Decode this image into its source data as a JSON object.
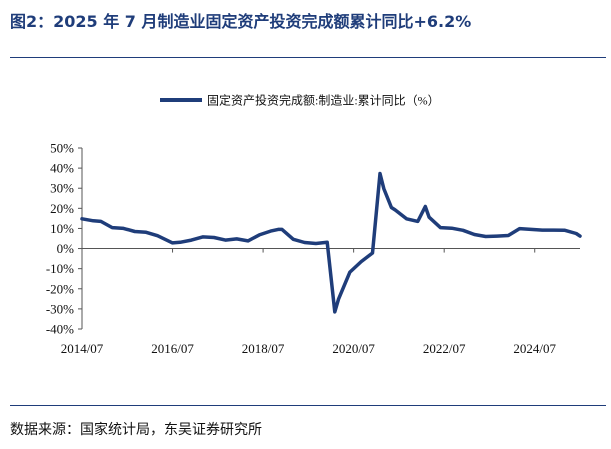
{
  "figure": {
    "title": "图2：2025 年 7 月制造业固定资产投资完成额累计同比+6.2%",
    "source": "数据来源：国家统计局，东吴证券研究所"
  },
  "chart_data": {
    "type": "line",
    "title": "",
    "xlabel": "",
    "ylabel": "",
    "legend": {
      "position": "top",
      "entries": [
        "固定资产投资完成额:制造业:累计同比（%）"
      ]
    },
    "grid": false,
    "ylim": [
      -40,
      50
    ],
    "yticks": [
      -40,
      -30,
      -20,
      -10,
      0,
      10,
      20,
      30,
      40,
      50
    ],
    "ytick_labels": [
      "-40%",
      "-30%",
      "-20%",
      "-10%",
      "0%",
      "10%",
      "20%",
      "30%",
      "40%",
      "50%"
    ],
    "xlim": [
      "2014/07",
      "2025/07"
    ],
    "xticks": [
      "2014/07",
      "2016/07",
      "2018/07",
      "2020/07",
      "2022/07",
      "2024/07"
    ],
    "series_color": "#1f3d7a",
    "series": [
      {
        "name": "固定资产投资完成额:制造业:累计同比（%）",
        "points": [
          [
            "2014/07",
            14.8
          ],
          [
            "2014/10",
            13.8
          ],
          [
            "2014/12",
            13.5
          ],
          [
            "2015/03",
            10.4
          ],
          [
            "2015/06",
            10.0
          ],
          [
            "2015/09",
            8.5
          ],
          [
            "2015/12",
            8.1
          ],
          [
            "2016/03",
            6.4
          ],
          [
            "2016/05",
            4.6
          ],
          [
            "2016/07",
            2.8
          ],
          [
            "2016/09",
            3.1
          ],
          [
            "2016/12",
            4.2
          ],
          [
            "2017/03",
            5.8
          ],
          [
            "2017/06",
            5.5
          ],
          [
            "2017/09",
            4.2
          ],
          [
            "2017/12",
            4.8
          ],
          [
            "2018/03",
            3.8
          ],
          [
            "2018/06",
            6.8
          ],
          [
            "2018/09",
            8.7
          ],
          [
            "2018/11",
            9.5
          ],
          [
            "2018/12",
            9.5
          ],
          [
            "2019/03",
            4.6
          ],
          [
            "2019/06",
            3.0
          ],
          [
            "2019/09",
            2.5
          ],
          [
            "2019/12",
            3.1
          ],
          [
            "2020/02",
            -31.5
          ],
          [
            "2020/03",
            -25.2
          ],
          [
            "2020/06",
            -11.7
          ],
          [
            "2020/09",
            -6.5
          ],
          [
            "2020/12",
            -2.2
          ],
          [
            "2021/02",
            37.3
          ],
          [
            "2021/03",
            29.8
          ],
          [
            "2021/05",
            20.4
          ],
          [
            "2021/06",
            19.2
          ],
          [
            "2021/09",
            14.8
          ],
          [
            "2021/12",
            13.5
          ],
          [
            "2022/02",
            20.9
          ],
          [
            "2022/03",
            15.6
          ],
          [
            "2022/06",
            10.4
          ],
          [
            "2022/09",
            10.1
          ],
          [
            "2022/12",
            9.1
          ],
          [
            "2023/03",
            7.0
          ],
          [
            "2023/06",
            6.0
          ],
          [
            "2023/09",
            6.2
          ],
          [
            "2023/12",
            6.5
          ],
          [
            "2024/03",
            9.9
          ],
          [
            "2024/06",
            9.5
          ],
          [
            "2024/09",
            9.2
          ],
          [
            "2024/12",
            9.2
          ],
          [
            "2025/03",
            9.1
          ],
          [
            "2025/06",
            7.5
          ],
          [
            "2025/07",
            6.2
          ]
        ]
      }
    ]
  }
}
